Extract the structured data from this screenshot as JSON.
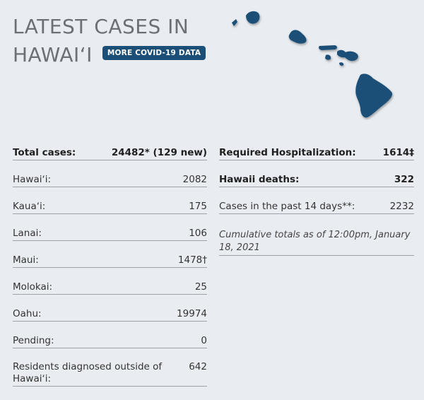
{
  "header": {
    "title_line1": "LATEST CASES IN",
    "title_line2": "HAWAIʻI",
    "more_button": "MORE COVID-19 DATA"
  },
  "left_column": [
    {
      "label": "Total cases:",
      "value": "24482* (129 new)",
      "bold": true
    },
    {
      "label": "Hawaiʻi:",
      "value": "2082",
      "bold": false
    },
    {
      "label": "Kauaʻi:",
      "value": "175",
      "bold": false
    },
    {
      "label": "Lanai:",
      "value": "106",
      "bold": false
    },
    {
      "label": "Maui:",
      "value": "1478†",
      "bold": false
    },
    {
      "label": "Molokai:",
      "value": "25",
      "bold": false
    },
    {
      "label": "Oahu:",
      "value": "19974",
      "bold": false
    },
    {
      "label": "Pending:",
      "value": "0",
      "bold": false
    },
    {
      "label": "Residents diagnosed outside of Hawaiʻi:",
      "value": "642",
      "bold": false
    }
  ],
  "right_column": [
    {
      "label": "Required Hospitalization:",
      "value": "1614‡",
      "bold": true
    },
    {
      "label": "Hawaii deaths:",
      "value": "322",
      "bold": true
    },
    {
      "label": "Cases in the past 14 days**:",
      "value": "2232",
      "bold": false
    }
  ],
  "note": "Cumulative totals as of 12:00pm, January 18, 2021",
  "colors": {
    "map_fill": "#1c4f77",
    "button_bg": "#1c4f77",
    "background": "#e9edf1"
  }
}
